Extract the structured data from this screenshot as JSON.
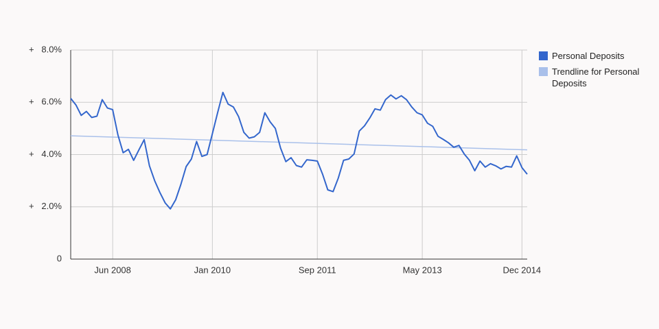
{
  "chart_data": {
    "type": "line",
    "x": [
      "2007-10",
      "2007-11",
      "2007-12",
      "2008-01",
      "2008-02",
      "2008-03",
      "2008-04",
      "2008-05",
      "2008-06",
      "2008-07",
      "2008-08",
      "2008-09",
      "2008-10",
      "2008-11",
      "2008-12",
      "2009-01",
      "2009-02",
      "2009-03",
      "2009-04",
      "2009-05",
      "2009-06",
      "2009-07",
      "2009-08",
      "2009-09",
      "2009-10",
      "2009-11",
      "2009-12",
      "2010-01",
      "2010-02",
      "2010-03",
      "2010-04",
      "2010-05",
      "2010-06",
      "2010-07",
      "2010-08",
      "2010-09",
      "2010-10",
      "2010-11",
      "2010-12",
      "2011-01",
      "2011-02",
      "2011-03",
      "2011-04",
      "2011-05",
      "2011-06",
      "2011-07",
      "2011-08",
      "2011-09",
      "2011-10",
      "2011-11",
      "2011-12",
      "2012-01",
      "2012-02",
      "2012-03",
      "2012-04",
      "2012-05",
      "2012-06",
      "2012-07",
      "2012-08",
      "2012-09",
      "2012-10",
      "2012-11",
      "2012-12",
      "2013-01",
      "2013-02",
      "2013-03",
      "2013-04",
      "2013-05",
      "2013-06",
      "2013-07",
      "2013-08",
      "2013-09",
      "2013-10",
      "2013-11",
      "2013-12",
      "2014-01",
      "2014-02",
      "2014-03",
      "2014-04",
      "2014-05",
      "2014-06",
      "2014-07",
      "2014-08",
      "2014-09",
      "2014-10",
      "2014-11",
      "2014-12",
      "2015-01"
    ],
    "series": [
      {
        "name": "Personal Deposits",
        "color": "#3366cc",
        "values": [
          6.15,
          5.9,
          5.5,
          5.65,
          5.42,
          5.47,
          6.1,
          5.78,
          5.72,
          4.75,
          4.07,
          4.2,
          3.78,
          4.18,
          4.57,
          3.57,
          3.0,
          2.55,
          2.15,
          1.92,
          2.27,
          2.86,
          3.54,
          3.83,
          4.5,
          3.93,
          4.0,
          4.8,
          5.6,
          6.38,
          5.93,
          5.82,
          5.45,
          4.85,
          4.63,
          4.68,
          4.85,
          5.6,
          5.25,
          5.0,
          4.25,
          3.73,
          3.88,
          3.58,
          3.52,
          3.8,
          3.78,
          3.75,
          3.25,
          2.65,
          2.58,
          3.1,
          3.78,
          3.83,
          4.02,
          4.9,
          5.1,
          5.4,
          5.75,
          5.7,
          6.1,
          6.28,
          6.13,
          6.25,
          6.1,
          5.82,
          5.6,
          5.52,
          5.2,
          5.08,
          4.7,
          4.58,
          4.45,
          4.28,
          4.35,
          4.02,
          3.78,
          3.38,
          3.75,
          3.52,
          3.65,
          3.57,
          3.45,
          3.55,
          3.52,
          3.95,
          3.5,
          3.25
        ]
      }
    ],
    "trendline": {
      "name": "Trendline for Personal Deposits",
      "color": "#a9c0ea",
      "x": [
        "2007-10",
        "2015-01"
      ],
      "values": [
        4.72,
        4.18
      ]
    },
    "xlim": [
      "2007-10",
      "2015-01"
    ],
    "xticks": [
      {
        "value": "2008-06",
        "label": "Jun 2008"
      },
      {
        "value": "2010-01",
        "label": "Jan 2010"
      },
      {
        "value": "2011-09",
        "label": "Sep 2011"
      },
      {
        "value": "2013-05",
        "label": "May 2013"
      },
      {
        "value": "2014-12",
        "label": "Dec 2014"
      }
    ],
    "ylim": [
      0,
      8
    ],
    "yticks": [
      0,
      {
        "value": 2,
        "label": "+   2.0%"
      },
      {
        "value": 4,
        "label": "+   4.0%"
      },
      {
        "value": 6,
        "label": "+   6.0%"
      },
      {
        "value": 8,
        "label": "+   8.0%"
      }
    ],
    "grid": true
  }
}
